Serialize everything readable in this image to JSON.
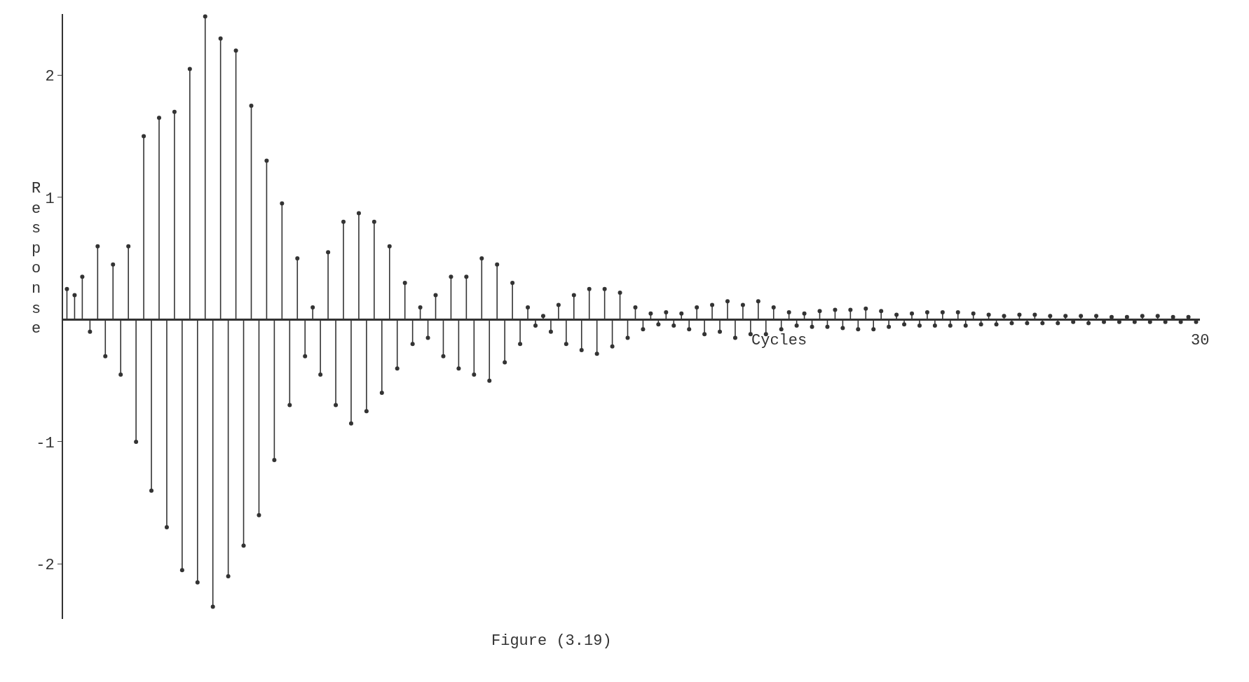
{
  "chart_data": {
    "type": "lollipop",
    "title": "Figure (3.19)",
    "xlabel": "Cycles",
    "ylabel": "Response",
    "annotations": [
      "30"
    ],
    "categories": [
      null,
      null,
      null,
      null,
      null,
      null,
      null,
      null,
      null,
      null,
      null,
      null,
      null,
      null,
      null,
      null,
      null,
      null,
      null,
      null,
      null,
      null,
      null,
      null,
      null,
      null,
      null,
      null,
      null,
      null,
      null,
      null,
      null,
      null,
      null,
      null,
      null,
      null,
      null,
      null,
      null,
      null,
      null,
      null,
      null,
      null,
      null,
      null,
      null,
      null,
      null,
      null,
      null,
      null,
      null,
      null,
      null,
      null,
      null,
      null,
      null,
      null,
      null,
      null,
      null,
      null,
      null,
      null,
      null,
      null,
      null,
      null,
      null,
      null,
      null,
      null,
      null,
      null,
      null,
      null,
      null,
      null,
      null,
      null,
      null,
      null,
      null,
      null,
      null,
      null,
      null,
      null,
      null,
      null,
      null,
      null,
      null,
      null,
      null,
      null,
      null,
      null,
      null,
      null,
      null,
      null,
      null,
      null,
      null,
      null,
      null,
      null,
      null,
      null,
      null,
      null,
      null,
      null,
      null,
      null,
      null,
      null,
      null,
      null,
      null,
      null,
      null,
      null,
      null,
      null,
      null,
      null,
      null,
      null,
      null,
      null,
      null,
      null,
      null,
      null,
      null,
      null,
      null,
      null,
      null,
      null,
      null,
      null
    ],
    "ylim": [
      -2.45,
      2.5
    ],
    "yticks": [
      -2,
      -1,
      1,
      2
    ],
    "marker": "circle",
    "series": [
      {
        "color": "#333333",
        "values": [
          0.25,
          0.2,
          0.35,
          -0.1,
          0.6,
          -0.3,
          0.45,
          -0.45,
          0.6,
          -1.0,
          1.5,
          -1.4,
          1.65,
          -1.7,
          1.7,
          -2.05,
          2.05,
          -2.15,
          2.48,
          -2.35,
          2.3,
          -2.1,
          2.2,
          -1.85,
          1.75,
          -1.6,
          1.3,
          -1.15,
          0.95,
          -0.7,
          0.5,
          -0.3,
          0.1,
          -0.45,
          0.55,
          -0.7,
          0.8,
          -0.85,
          0.87,
          -0.75,
          0.8,
          -0.6,
          0.6,
          -0.4,
          0.3,
          -0.2,
          0.1,
          -0.15,
          0.2,
          -0.3,
          0.35,
          -0.4,
          0.35,
          -0.45,
          0.5,
          -0.5,
          0.45,
          -0.35,
          0.3,
          -0.2,
          0.1,
          -0.05,
          0.03,
          -0.1,
          0.12,
          -0.2,
          0.2,
          -0.25,
          0.25,
          -0.28,
          0.25,
          -0.22,
          0.22,
          -0.15,
          0.1,
          -0.08,
          0.05,
          -0.04,
          0.06,
          -0.05,
          0.05,
          -0.08,
          0.1,
          -0.12,
          0.12,
          -0.1,
          0.15,
          -0.15,
          0.12,
          -0.12,
          0.15,
          -0.12,
          0.1,
          -0.08,
          0.06,
          -0.05,
          0.05,
          -0.06,
          0.07,
          -0.06,
          0.08,
          -0.07,
          0.08,
          -0.08,
          0.09,
          -0.08,
          0.07,
          -0.06,
          0.04,
          -0.04,
          0.05,
          -0.05,
          0.06,
          -0.05,
          0.06,
          -0.05,
          0.06,
          -0.05,
          0.05,
          -0.04,
          0.04,
          -0.04,
          0.03,
          -0.03,
          0.04,
          -0.03,
          0.04,
          -0.03,
          0.03,
          -0.03,
          0.03,
          -0.02,
          0.03,
          -0.03,
          0.03,
          -0.02,
          0.02,
          -0.02,
          0.02,
          -0.02,
          0.03,
          -0.02,
          0.03,
          -0.02,
          0.02,
          -0.02,
          0.02,
          -0.02
        ]
      }
    ]
  }
}
